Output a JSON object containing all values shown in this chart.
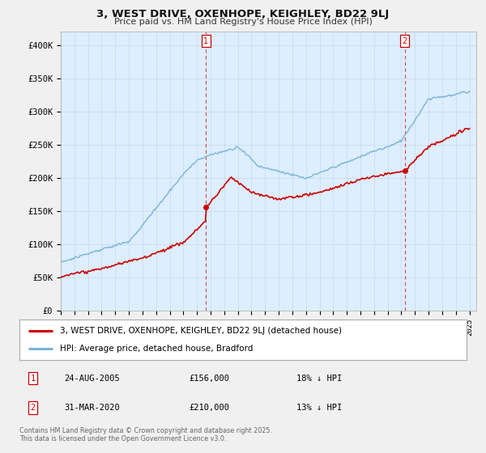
{
  "title": "3, WEST DRIVE, OXENHOPE, KEIGHLEY, BD22 9LJ",
  "subtitle": "Price paid vs. HM Land Registry's House Price Index (HPI)",
  "ylabel_ticks": [
    "£0",
    "£50K",
    "£100K",
    "£150K",
    "£200K",
    "£250K",
    "£300K",
    "£350K",
    "£400K"
  ],
  "ytick_values": [
    0,
    50000,
    100000,
    150000,
    200000,
    250000,
    300000,
    350000,
    400000
  ],
  "ylim": [
    0,
    420000
  ],
  "legend_house": "3, WEST DRIVE, OXENHOPE, KEIGHLEY, BD22 9LJ (detached house)",
  "legend_hpi": "HPI: Average price, detached house, Bradford",
  "marker1_date": "24-AUG-2005",
  "marker1_price": 156000,
  "marker1_label": "18% ↓ HPI",
  "marker2_date": "31-MAR-2020",
  "marker2_price": 210000,
  "marker2_label": "13% ↓ HPI",
  "footnote": "Contains HM Land Registry data © Crown copyright and database right 2025.\nThis data is licensed under the Open Government Licence v3.0.",
  "hpi_color": "#7ab3d4",
  "price_color": "#cc0000",
  "vline_color": "#cc0000",
  "plot_bg_color": "#ddeeff",
  "background_color": "#f0f0f0",
  "sale1_t": 2005.65,
  "sale1_price": 156000,
  "sale2_t": 2020.25,
  "sale2_price": 210000
}
